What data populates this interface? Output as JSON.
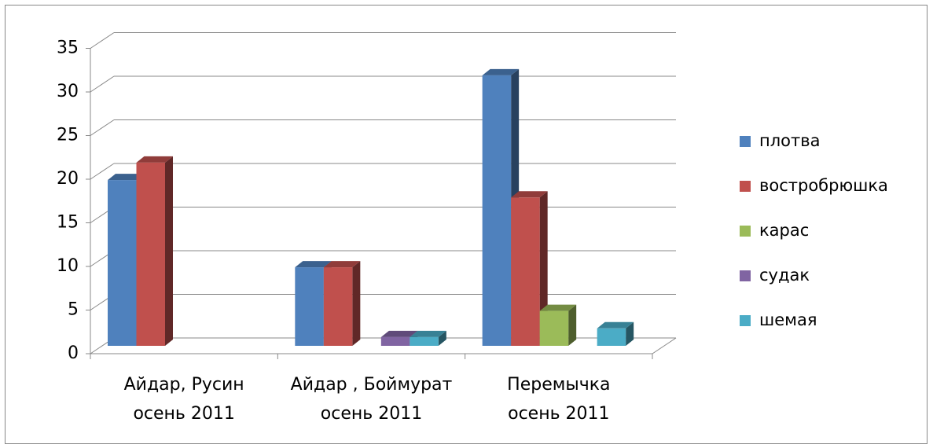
{
  "chart_data": {
    "type": "bar3d",
    "categories": [
      [
        "Айдар, Русин",
        "осень 2011"
      ],
      [
        "Айдар , Боймурат",
        "осень 2011"
      ],
      [
        "Перемычка",
        "осень 2011"
      ]
    ],
    "series": [
      {
        "name": "плотва",
        "color": "#4f81bd",
        "values": [
          19,
          9,
          31
        ]
      },
      {
        "name": "востробрюшка",
        "color": "#c0504d",
        "values": [
          21,
          9,
          17
        ]
      },
      {
        "name": "карас",
        "color": "#9bbb59",
        "values": [
          null,
          null,
          4
        ]
      },
      {
        "name": "судак",
        "color": "#8064a2",
        "values": [
          null,
          1,
          null
        ]
      },
      {
        "name": "шемая",
        "color": "#4bacc6",
        "values": [
          null,
          1,
          2
        ]
      }
    ],
    "ylim": [
      0,
      35
    ],
    "yticks": [
      0,
      5,
      10,
      15,
      20,
      25,
      30,
      35
    ],
    "grid": true,
    "legend": "right"
  }
}
